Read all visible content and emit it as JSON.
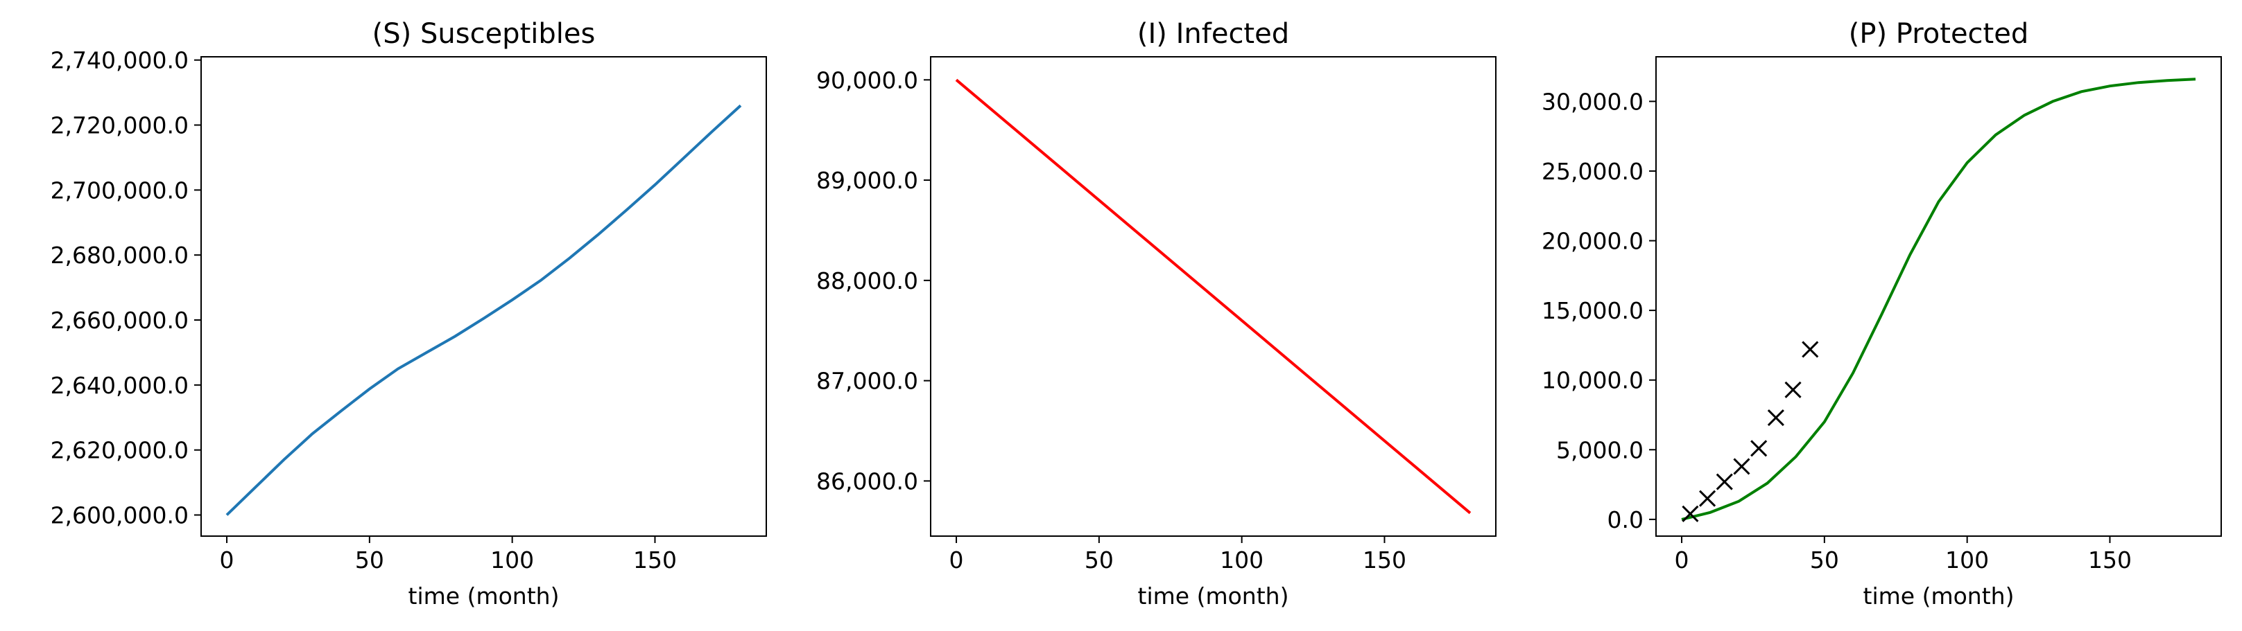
{
  "colors": {
    "blue": "#1f77b4",
    "red": "#ff0000",
    "green": "#008000",
    "black": "#000000"
  },
  "chart_data": [
    {
      "type": "line",
      "title": "(S) Susceptibles",
      "xlabel": "time (month)",
      "ylabel": "",
      "xlim": [
        -9,
        189
      ],
      "ylim": [
        2593500,
        2741000
      ],
      "xticks": [
        0,
        50,
        100,
        150
      ],
      "xtick_labels": [
        "0",
        "50",
        "100",
        "150"
      ],
      "yticks": [
        2600000,
        2620000,
        2640000,
        2660000,
        2680000,
        2700000,
        2720000,
        2740000
      ],
      "ytick_labels": [
        "2,600,000.0",
        "2,620,000.0",
        "2,640,000.0",
        "2,660,000.0",
        "2,680,000.0",
        "2,700,000.0",
        "2,720,000.0",
        "2,740,000.0"
      ],
      "grid": false,
      "series": [
        {
          "color": "#1f77b4",
          "style": "line",
          "x": [
            0,
            10,
            20,
            30,
            40,
            50,
            60,
            70,
            80,
            90,
            100,
            110,
            120,
            130,
            140,
            150,
            160,
            170,
            180
          ],
          "y": [
            2600000,
            2608500,
            2617000,
            2625000,
            2632000,
            2638800,
            2645000,
            2650000,
            2655000,
            2660500,
            2666200,
            2672200,
            2679000,
            2686200,
            2693800,
            2701600,
            2709800,
            2718000,
            2726000
          ]
        }
      ]
    },
    {
      "type": "line",
      "title": "(I) Infected",
      "xlabel": "time (month)",
      "ylabel": "",
      "xlim": [
        -9,
        189
      ],
      "ylim": [
        85450,
        90230
      ],
      "xticks": [
        0,
        50,
        100,
        150
      ],
      "xtick_labels": [
        "0",
        "50",
        "100",
        "150"
      ],
      "yticks": [
        86000,
        87000,
        88000,
        89000,
        90000
      ],
      "ytick_labels": [
        "86,000.0",
        "87,000.0",
        "88,000.0",
        "89,000.0",
        "90,000.0"
      ],
      "grid": false,
      "series": [
        {
          "color": "#ff0000",
          "style": "line",
          "x": [
            0,
            180
          ],
          "y": [
            90000,
            85680
          ]
        }
      ]
    },
    {
      "type": "line",
      "title": "(P) Protected",
      "xlabel": "time (month)",
      "ylabel": "",
      "xlim": [
        -9,
        189
      ],
      "ylim": [
        -1200,
        33200
      ],
      "xticks": [
        0,
        50,
        100,
        150
      ],
      "xtick_labels": [
        "0",
        "50",
        "100",
        "150"
      ],
      "yticks": [
        0,
        5000,
        10000,
        15000,
        20000,
        25000,
        30000
      ],
      "ytick_labels": [
        "0.0",
        "5,000.0",
        "10,000.0",
        "15,000.0",
        "20,000.0",
        "25,000.0",
        "30,000.0"
      ],
      "grid": false,
      "series": [
        {
          "color": "#008000",
          "style": "line",
          "x": [
            0,
            10,
            20,
            30,
            40,
            50,
            60,
            70,
            80,
            90,
            100,
            110,
            120,
            130,
            140,
            150,
            160,
            170,
            180
          ],
          "y": [
            0,
            500,
            1300,
            2600,
            4500,
            7000,
            10500,
            14700,
            19000,
            22800,
            25600,
            27600,
            29000,
            30000,
            30700,
            31100,
            31350,
            31500,
            31600
          ]
        },
        {
          "color": "#000000",
          "style": "marker",
          "marker": "x",
          "x": [
            3,
            9,
            15,
            21,
            27,
            33,
            39,
            45
          ],
          "y": [
            400,
            1500,
            2700,
            3800,
            5100,
            7300,
            9300,
            12200
          ]
        }
      ]
    }
  ]
}
